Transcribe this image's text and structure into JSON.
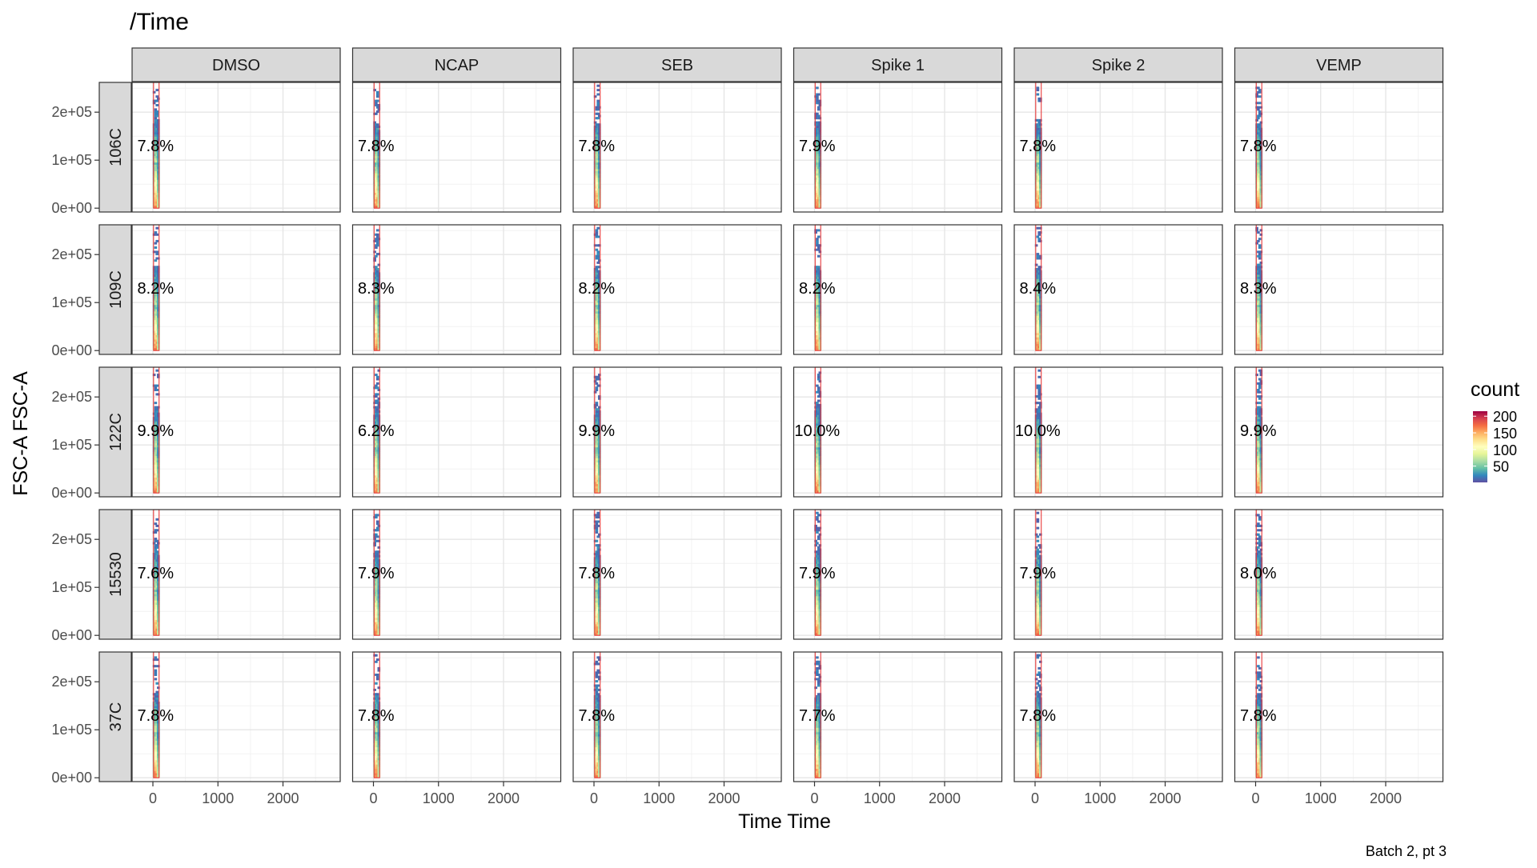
{
  "chart_data": {
    "type": "heatmap",
    "title": "/Time",
    "xlabel": "Time Time",
    "ylabel": "FSC-A FSC-A",
    "caption": "Batch 2, pt 3",
    "columns": [
      "DMSO",
      "NCAP",
      "SEB",
      "Spike 1",
      "Spike 2",
      "VEMP"
    ],
    "rows": [
      "106C",
      "109C",
      "122C",
      "15530",
      "37C"
    ],
    "x_ticks": [
      {
        "value": 0,
        "label": "0"
      },
      {
        "value": 1000,
        "label": "1000"
      },
      {
        "value": 2000,
        "label": "2000"
      }
    ],
    "y_ticks": [
      {
        "value": 0,
        "label": "0e+00"
      },
      {
        "value": 100000,
        "label": "1e+05"
      },
      {
        "value": 200000,
        "label": "2e+05"
      }
    ],
    "xlim": [
      -320,
      2880
    ],
    "ylim": [
      -8000,
      262000
    ],
    "gate": {
      "x_min": 10,
      "x_max": 95,
      "y_min": 0,
      "y_max": 262000
    },
    "label_position": {
      "time": 40,
      "fsc": 130000
    },
    "percentages": [
      [
        "7.8%",
        "7.8%",
        "7.8%",
        "7.9%",
        "7.8%",
        "7.8%"
      ],
      [
        "8.2%",
        "8.3%",
        "8.2%",
        "8.2%",
        "8.4%",
        "8.3%"
      ],
      [
        "9.9%",
        "6.2%",
        "9.9%",
        "10.0%",
        "10.0%",
        "9.9%"
      ],
      [
        "7.6%",
        "7.9%",
        "7.8%",
        "7.9%",
        "7.9%",
        "8.0%"
      ],
      [
        "7.8%",
        "7.8%",
        "7.8%",
        "7.7%",
        "7.8%",
        "7.8%"
      ]
    ],
    "legend": {
      "title": "count",
      "position": "right",
      "breaks": [
        {
          "value": 50,
          "label": "50"
        },
        {
          "value": 100,
          "label": "100"
        },
        {
          "value": 150,
          "label": "150"
        },
        {
          "value": 200,
          "label": "200"
        }
      ],
      "range": [
        1,
        215
      ],
      "palette": [
        "#5e4fa2",
        "#3288bd",
        "#66c2a5",
        "#abdda4",
        "#e6f598",
        "#ffffbf",
        "#fee08b",
        "#fdae61",
        "#f46d43",
        "#d53e4f",
        "#9e0142"
      ]
    },
    "grid": true,
    "strip_color": "#d9d9d9",
    "gate_color": "#e8393a"
  }
}
